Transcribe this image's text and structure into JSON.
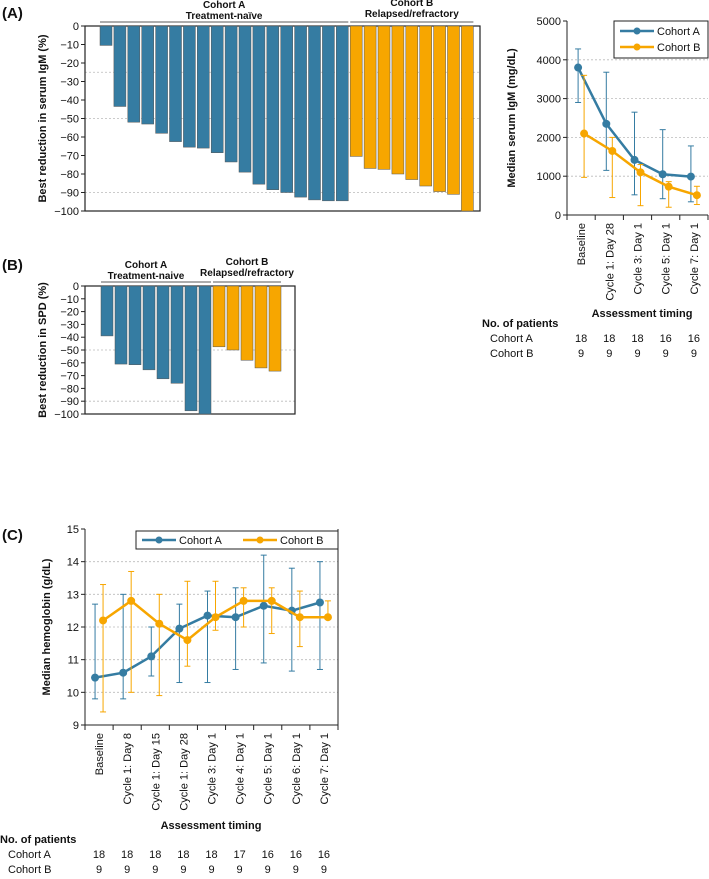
{
  "colors": {
    "cohort_a": "#357ca2",
    "cohort_b": "#f7a600",
    "grid": "#bbbbbb"
  },
  "chart_data": [
    {
      "panel": "(A)",
      "type": "bar",
      "subtype": "waterfall",
      "ylabel": "Best reduction in serum IgM (%)",
      "ylim": [
        -100,
        0
      ],
      "yticks": [
        0,
        -10,
        -20,
        -30,
        -40,
        -50,
        -60,
        -70,
        -80,
        -90,
        -100
      ],
      "gridlines": [
        -25,
        -50,
        -90
      ],
      "groups": [
        {
          "name": "Cohort A",
          "subtitle": "Treatment-naïve",
          "color": "#357ca2",
          "values": [
            -10.5,
            -43.5,
            -52,
            -53,
            -58,
            -62.5,
            -65.5,
            -66,
            -68.5,
            -73.5,
            -79,
            -85.5,
            -88.5,
            -90,
            -92.5,
            -94,
            -94.5,
            -94.5
          ]
        },
        {
          "name": "Cohort B",
          "subtitle": "Relapsed/refractory",
          "color": "#f7a600",
          "values": [
            -70.5,
            -77,
            -77.5,
            -80,
            -83,
            -86.5,
            -89.5,
            -91,
            -100
          ]
        }
      ]
    },
    {
      "panel": "",
      "type": "line",
      "ylabel": "Median serum IgM (mg/dL)",
      "xlabel": "Assessment timing",
      "ylim": [
        0,
        5000
      ],
      "yticks": [
        0,
        1000,
        2000,
        3000,
        4000,
        5000
      ],
      "grid": true,
      "legend": "top-right",
      "categories": [
        "Baseline",
        "Cycle 1: Day 28",
        "Cycle 3: Day 1",
        "Cycle 5: Day 1",
        "Cycle 7: Day 1"
      ],
      "series": [
        {
          "name": "Cohort A",
          "color": "#357ca2",
          "values": [
            3800,
            2350,
            1420,
            1050,
            990
          ],
          "err_low": [
            2900,
            1150,
            520,
            420,
            340
          ],
          "err_high": [
            4280,
            3680,
            2650,
            2200,
            1780
          ]
        },
        {
          "name": "Cohort B",
          "color": "#f7a600",
          "values": [
            2100,
            1650,
            1100,
            730,
            510
          ],
          "err_low": [
            970,
            450,
            240,
            200,
            270
          ],
          "err_high": [
            3600,
            2000,
            1300,
            860,
            740
          ]
        }
      ],
      "patients": {
        "title": "No. of patients",
        "rows": [
          {
            "label": "Cohort A",
            "counts": [
              "18",
              "18",
              "18",
              "16",
              "16"
            ]
          },
          {
            "label": "Cohort B",
            "counts": [
              "9",
              "9",
              "9",
              "9",
              "9"
            ]
          }
        ]
      }
    },
    {
      "panel": "(B)",
      "type": "bar",
      "subtype": "waterfall",
      "ylabel": "Best reduction in SPD (%)",
      "ylim": [
        -100,
        0
      ],
      "yticks": [
        0,
        -10,
        -20,
        -30,
        -40,
        -50,
        -60,
        -70,
        -80,
        -90,
        -100
      ],
      "gridlines": [
        -50,
        -90
      ],
      "groups": [
        {
          "name": "Cohort A",
          "subtitle": "Treatment-naive",
          "color": "#357ca2",
          "values": [
            -39,
            -61,
            -61.5,
            -65.5,
            -72.5,
            -76,
            -97.5,
            -100
          ]
        },
        {
          "name": "Cohort B",
          "subtitle": "Relapsed/refractory",
          "color": "#f7a600",
          "values": [
            -47.5,
            -50,
            -58,
            -64,
            -66.5
          ]
        }
      ]
    },
    {
      "panel": "(C)",
      "type": "line",
      "ylabel": "Median hemoglobin (g/dL)",
      "xlabel": "Assessment timing",
      "ylim": [
        9,
        15
      ],
      "yticks": [
        9,
        10,
        11,
        12,
        13,
        14,
        15
      ],
      "grid": true,
      "legend": "top",
      "categories": [
        "Baseline",
        "Cycle 1: Day 8",
        "Cycle 1: Day 15",
        "Cycle 1: Day 28",
        "Cycle 3: Day 1",
        "Cycle 4: Day 1",
        "Cycle 5: Day 1",
        "Cycle 6: Day 1",
        "Cycle 7: Day 1"
      ],
      "series": [
        {
          "name": "Cohort A",
          "color": "#357ca2",
          "values": [
            10.45,
            10.6,
            11.1,
            11.95,
            12.35,
            12.3,
            12.65,
            12.5,
            12.75
          ],
          "err_low": [
            9.8,
            9.8,
            10.5,
            10.3,
            10.3,
            10.7,
            10.9,
            10.65,
            10.7
          ],
          "err_high": [
            12.7,
            13.0,
            12.0,
            12.7,
            13.1,
            13.2,
            14.2,
            13.8,
            14.0
          ]
        },
        {
          "name": "Cohort B",
          "color": "#f7a600",
          "values": [
            12.2,
            12.8,
            12.1,
            11.6,
            12.3,
            12.8,
            12.8,
            12.3,
            12.3
          ],
          "err_low": [
            9.4,
            10.0,
            9.9,
            10.8,
            11.9,
            12.0,
            11.8,
            11.4,
            12.3
          ],
          "err_high": [
            13.3,
            13.7,
            13.0,
            13.4,
            13.4,
            13.2,
            13.2,
            13.1,
            12.8
          ]
        }
      ],
      "patients": {
        "title": "No. of patients",
        "rows": [
          {
            "label": "Cohort A",
            "counts": [
              "18",
              "18",
              "18",
              "18",
              "18",
              "17",
              "16",
              "16",
              "16"
            ]
          },
          {
            "label": "Cohort B",
            "counts": [
              "9",
              "9",
              "9",
              "9",
              "9",
              "9",
              "9",
              "9",
              "9"
            ]
          }
        ]
      }
    }
  ]
}
